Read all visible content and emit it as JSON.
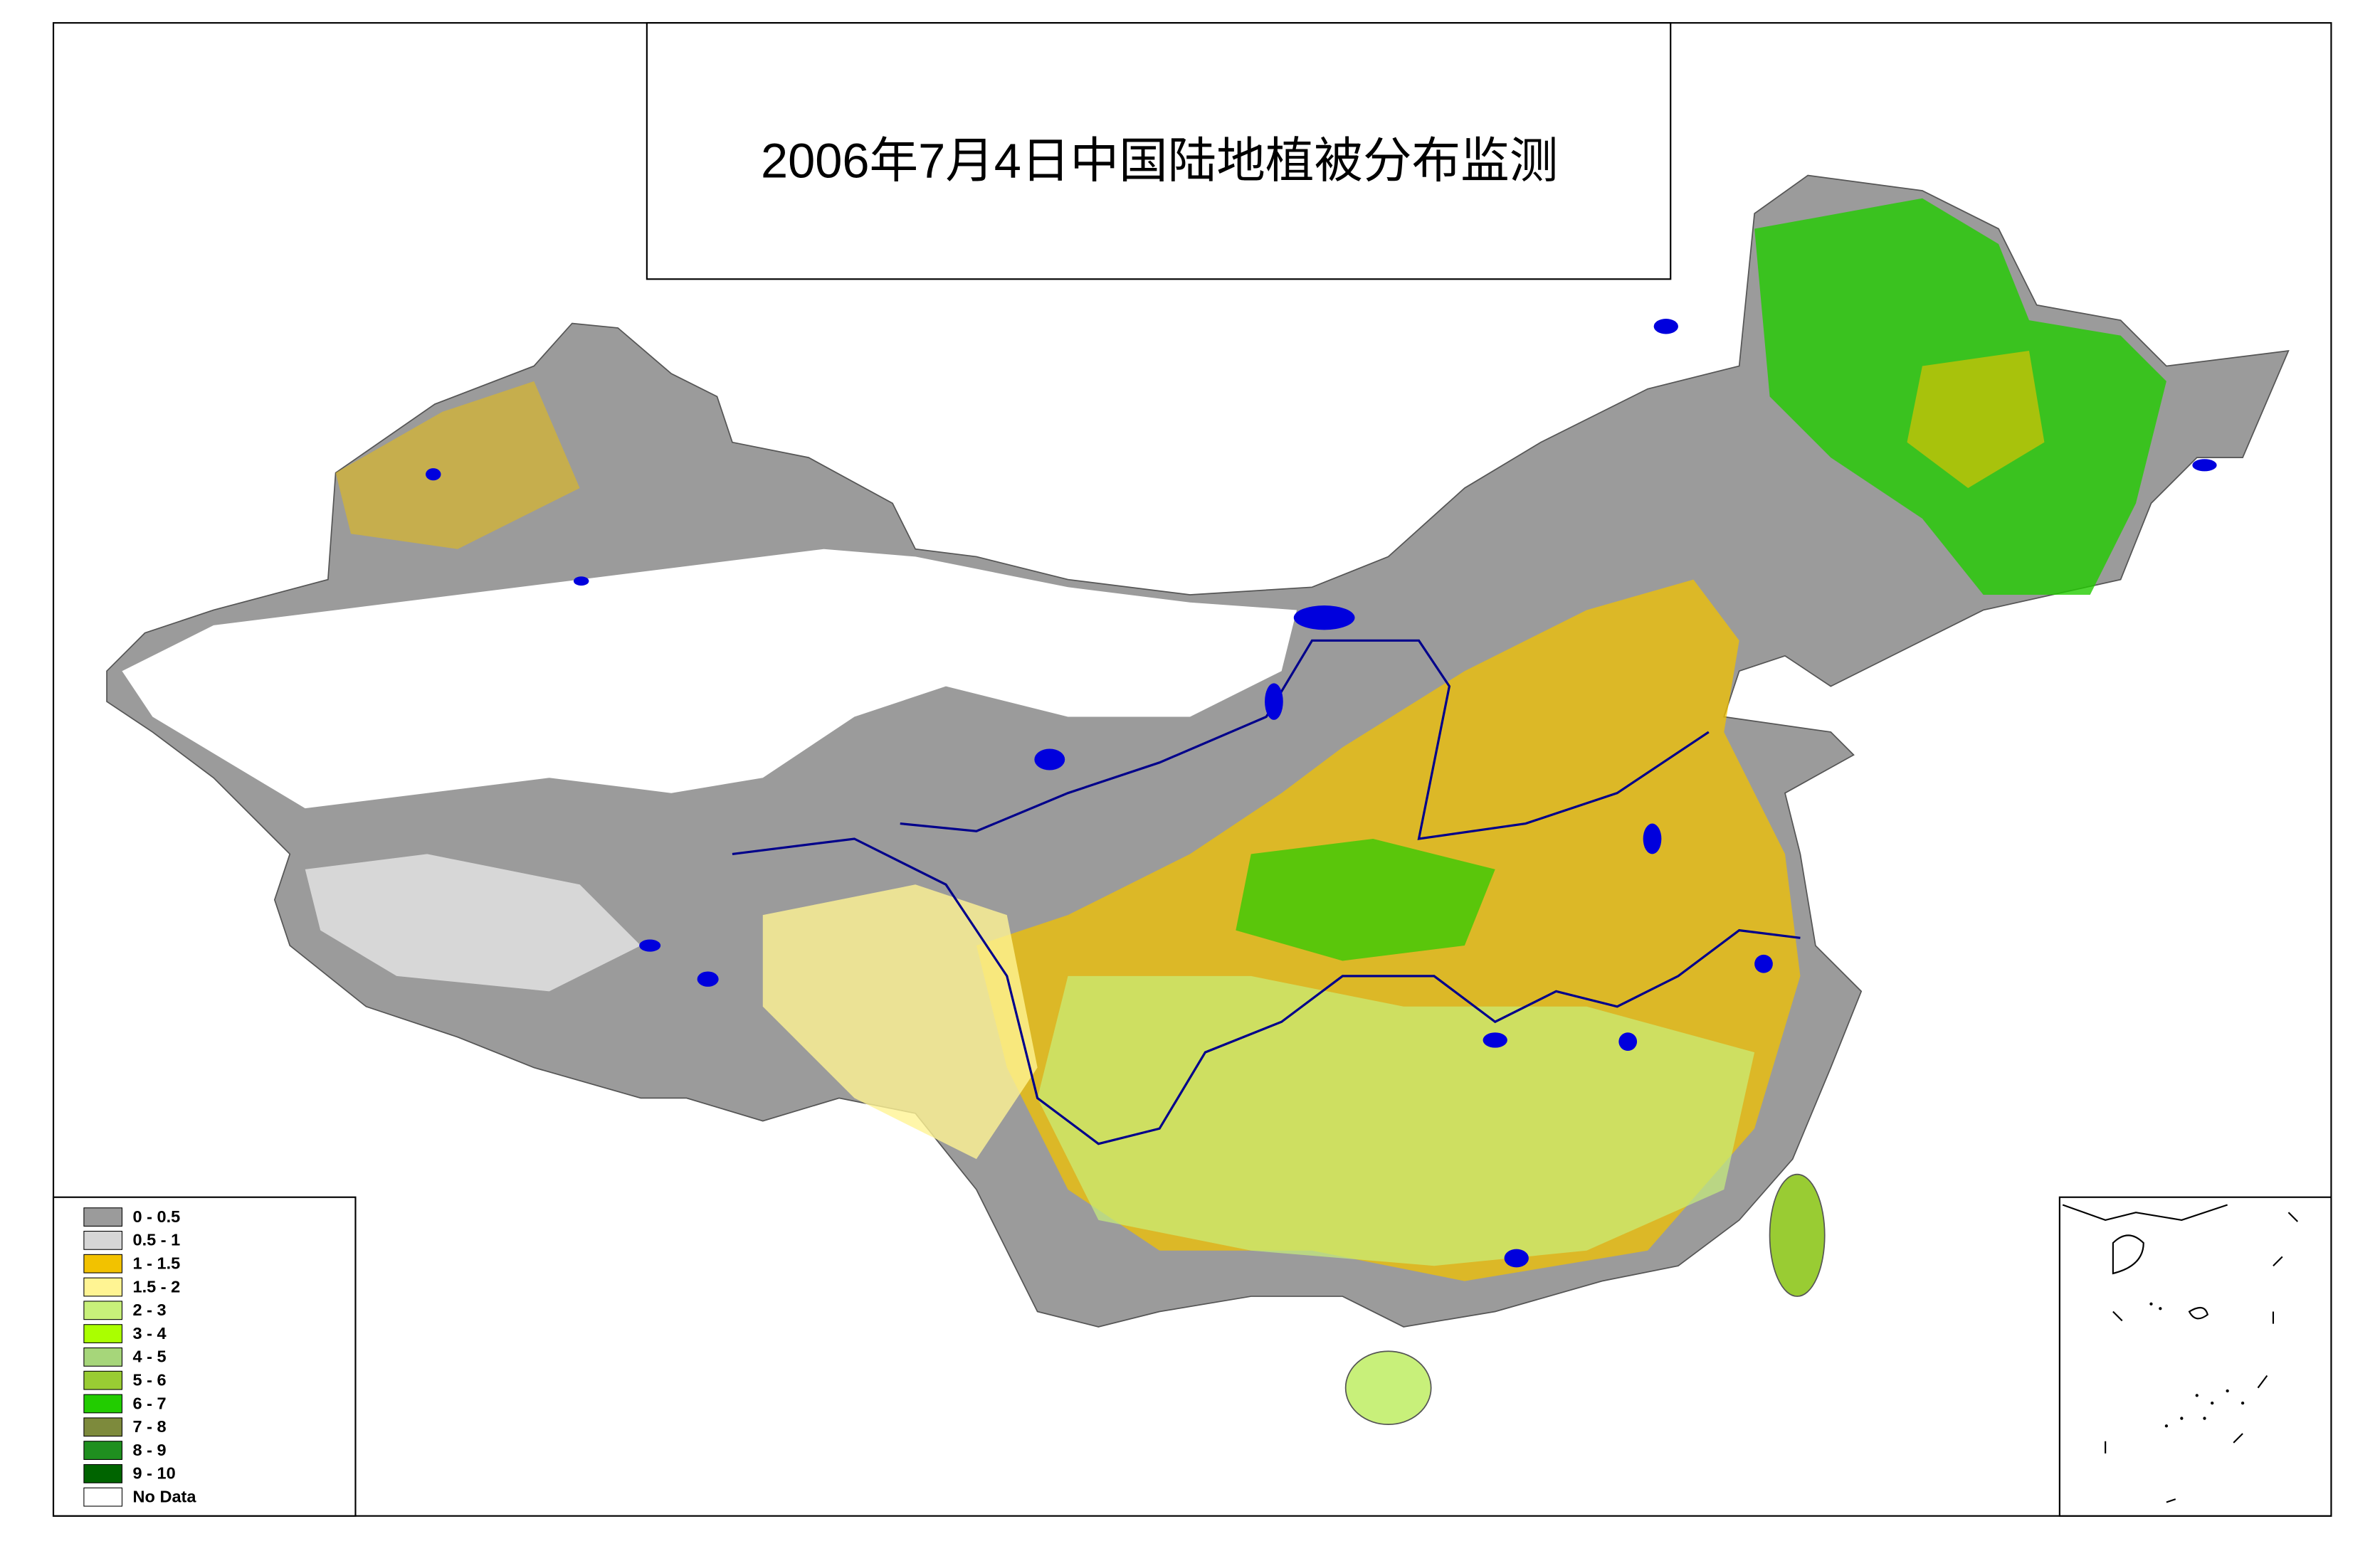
{
  "title": "2006年7月4日中国陆地植被分布监测",
  "legend": {
    "items": [
      {
        "label": "0 - 0.5",
        "color": "#9b9b9b"
      },
      {
        "label": "0.5 - 1",
        "color": "#d6d6d6"
      },
      {
        "label": "1 - 1.5",
        "color": "#f2c200"
      },
      {
        "label": "1.5 - 2",
        "color": "#fff493"
      },
      {
        "label": "2 - 3",
        "color": "#c8f07a"
      },
      {
        "label": "3 - 4",
        "color": "#aaff00"
      },
      {
        "label": "4 - 5",
        "color": "#a6d67a"
      },
      {
        "label": "5 - 6",
        "color": "#99cc33"
      },
      {
        "label": "6 - 7",
        "color": "#22cc00"
      },
      {
        "label": "7 - 8",
        "color": "#7d8a3c"
      },
      {
        "label": "8 - 9",
        "color": "#1f8f1f"
      },
      {
        "label": "9 - 10",
        "color": "#006400"
      },
      {
        "label": "No Data",
        "color": "#ffffff"
      }
    ]
  }
}
